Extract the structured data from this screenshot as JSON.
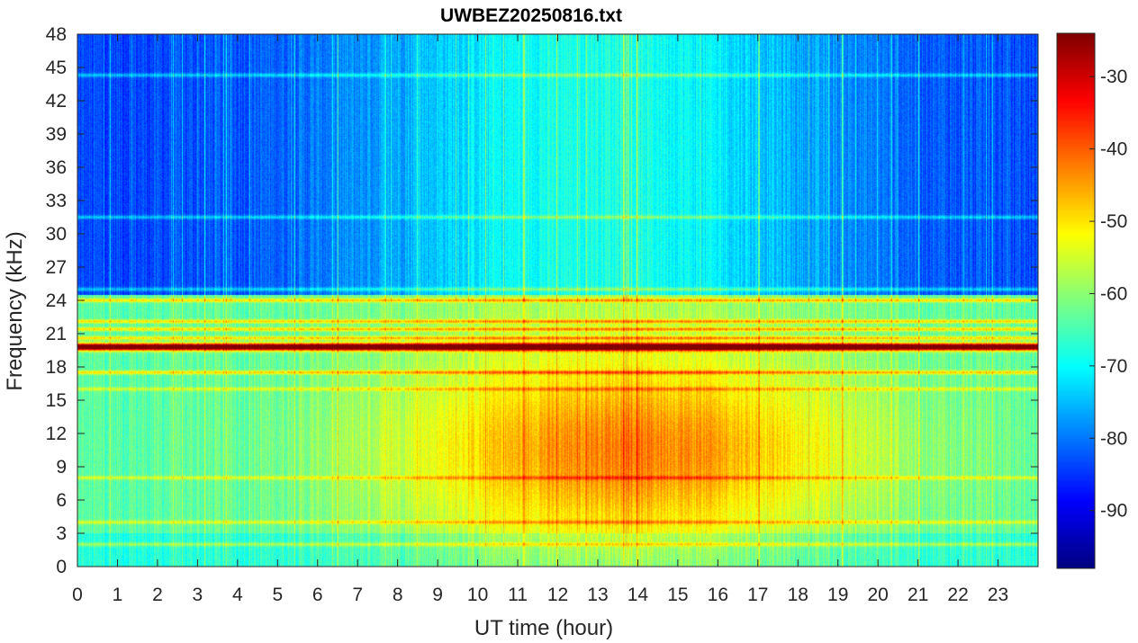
{
  "chart_data": {
    "type": "heatmap",
    "title": "UWBEZ20250816.txt",
    "xlabel": "UT time (hour)",
    "ylabel": "Frequency (kHz)",
    "xlim": [
      0,
      24
    ],
    "ylim": [
      0,
      48
    ],
    "x_ticks": [
      "0",
      "1",
      "2",
      "3",
      "4",
      "5",
      "6",
      "7",
      "8",
      "9",
      "10",
      "11",
      "12",
      "13",
      "14",
      "15",
      "16",
      "17",
      "18",
      "19",
      "20",
      "21",
      "22",
      "23"
    ],
    "y_ticks": [
      "0",
      "3",
      "6",
      "9",
      "12",
      "15",
      "18",
      "21",
      "24",
      "27",
      "30",
      "33",
      "36",
      "39",
      "42",
      "45",
      "48"
    ],
    "colorbar": {
      "colormap": "jet",
      "clim": [
        -98,
        -24
      ],
      "ticks": [
        "-30",
        "-40",
        "-50",
        "-60",
        "-70",
        "-80",
        "-90"
      ]
    },
    "features": {
      "strong_narrowband_khz": 19.8,
      "secondary_lines_khz": [
        21.4,
        20.6,
        22.1,
        24.0,
        17.5
      ],
      "interference_lines_khz": [
        4.0,
        2.0,
        8.0,
        16.0,
        25.0,
        31.5,
        44.3
      ],
      "background_level_db_night": -84,
      "background_level_db_day_high_freq": -68,
      "broadband_peak_level_db": -48,
      "broadband_peak_hours": [
        9,
        19
      ],
      "broadband_peak_freq_khz": [
        6,
        15
      ]
    }
  }
}
